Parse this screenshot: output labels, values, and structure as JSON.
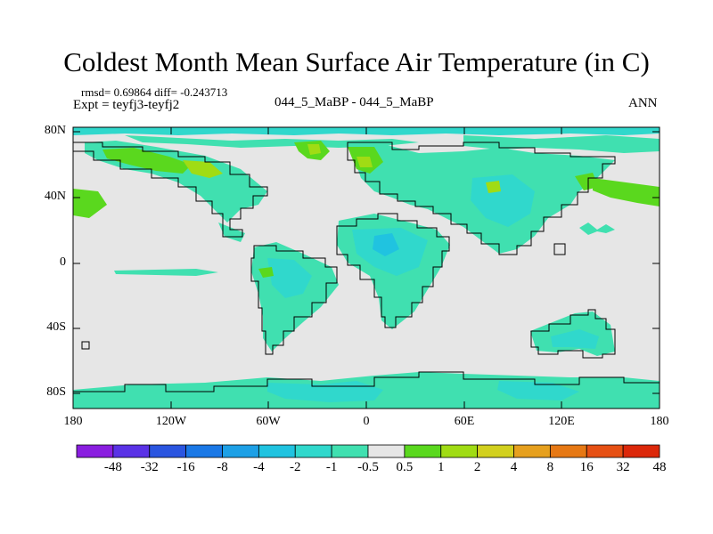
{
  "title": "Coldest Month Mean Surface Air Temperature (in C)",
  "stats": "rmsd= 0.69864 diff= -0.243713",
  "expt": "Expt = teyfj3-teyfj2",
  "center_label": "044_5_MaBP - 044_5_MaBP",
  "season": "ANN",
  "y_ticks": [
    "80N",
    "40N",
    "0",
    "40S",
    "80S"
  ],
  "x_ticks": [
    "180",
    "120W",
    "60W",
    "0",
    "60E",
    "120E",
    "180"
  ],
  "colorbar": {
    "labels": [
      "-48",
      "-32",
      "-16",
      "-8",
      "-4",
      "-2",
      "-1",
      "-0.5",
      "0.5",
      "1",
      "2",
      "4",
      "8",
      "16",
      "32",
      "48"
    ],
    "colors": [
      "#8a1ee0",
      "#5a32e6",
      "#2a55e0",
      "#1a78e6",
      "#1da0e6",
      "#20c3e0",
      "#30d8cc",
      "#40e0b0",
      "#e6e6e6",
      "#5ad81e",
      "#a0dc14",
      "#d2d01e",
      "#e6a01e",
      "#e67814",
      "#e65014",
      "#dc280a"
    ]
  },
  "map_colors": {
    "neutral": "#e6e6e6",
    "light_cool": "#40e0b0",
    "cool": "#30d8cc",
    "cooler": "#20c3e0",
    "warm": "#5ad81e",
    "warmer": "#a0dc14"
  }
}
